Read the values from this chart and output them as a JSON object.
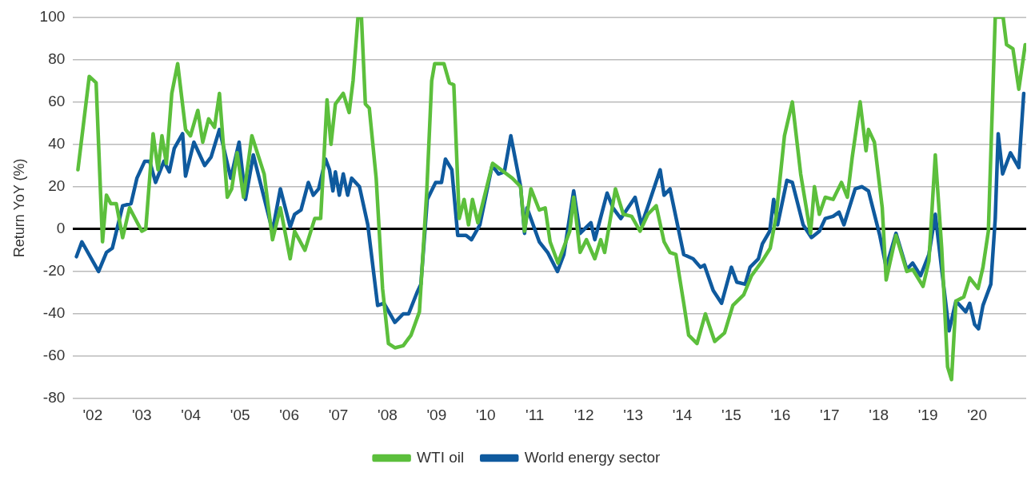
{
  "chart_data": {
    "type": "line",
    "ylabel": "Return YoY (%)",
    "legend": "bottom",
    "grid": "y",
    "marker": "none",
    "line_style": "solid",
    "xlim": [
      2001.6,
      2021.0
    ],
    "xticks": [
      {
        "value": 2002,
        "label": "'02"
      },
      {
        "value": 2003,
        "label": "'03"
      },
      {
        "value": 2004,
        "label": "'04"
      },
      {
        "value": 2005,
        "label": "'05"
      },
      {
        "value": 2006,
        "label": "'06"
      },
      {
        "value": 2007,
        "label": "'07"
      },
      {
        "value": 2008,
        "label": "'08"
      },
      {
        "value": 2009,
        "label": "'09"
      },
      {
        "value": 2010,
        "label": "'10"
      },
      {
        "value": 2011,
        "label": "'11"
      },
      {
        "value": 2012,
        "label": "'12"
      },
      {
        "value": 2013,
        "label": "'13"
      },
      {
        "value": 2014,
        "label": "'14"
      },
      {
        "value": 2015,
        "label": "'15"
      },
      {
        "value": 2016,
        "label": "'16"
      },
      {
        "value": 2017,
        "label": "'17"
      },
      {
        "value": 2018,
        "label": "'18"
      },
      {
        "value": 2019,
        "label": "'19"
      },
      {
        "value": 2020,
        "label": "'20"
      }
    ],
    "ylim": [
      -80,
      100
    ],
    "yticks": [
      -80,
      -60,
      -40,
      -20,
      0,
      20,
      40,
      60,
      80,
      100
    ],
    "series": [
      {
        "name": "WTI oil",
        "color": "#5cbf3c",
        "x": [
          2001.7,
          2001.93,
          2002.07,
          2002.2,
          2002.28,
          2002.37,
          2002.48,
          2002.61,
          2002.75,
          2003.0,
          2003.08,
          2003.23,
          2003.33,
          2003.41,
          2003.5,
          2003.61,
          2003.73,
          2003.89,
          2003.99,
          2004.14,
          2004.24,
          2004.36,
          2004.48,
          2004.58,
          2004.74,
          2004.83,
          2004.94,
          2005.07,
          2005.24,
          2005.49,
          2005.66,
          2005.82,
          2006.02,
          2006.11,
          2006.32,
          2006.52,
          2006.64,
          2006.77,
          2006.85,
          2006.94,
          2007.1,
          2007.22,
          2007.3,
          2007.4,
          2007.47,
          2007.55,
          2007.63,
          2007.77,
          2007.9,
          2008.02,
          2008.15,
          2008.32,
          2008.48,
          2008.65,
          2008.8,
          2008.9,
          2008.96,
          2009.15,
          2009.26,
          2009.35,
          2009.46,
          2009.56,
          2009.65,
          2009.73,
          2009.84,
          2010.14,
          2010.54,
          2010.71,
          2010.79,
          2010.92,
          2011.09,
          2011.21,
          2011.31,
          2011.47,
          2011.71,
          2011.79,
          2011.92,
          2012.05,
          2012.22,
          2012.34,
          2012.42,
          2012.64,
          2012.8,
          2012.97,
          2013.14,
          2013.3,
          2013.47,
          2013.63,
          2013.75,
          2013.87,
          2014.03,
          2014.13,
          2014.3,
          2014.47,
          2014.66,
          2014.86,
          2015.03,
          2015.25,
          2015.41,
          2015.63,
          2015.79,
          2015.91,
          2016.08,
          2016.24,
          2016.41,
          2016.61,
          2016.69,
          2016.79,
          2016.91,
          2017.07,
          2017.24,
          2017.36,
          2017.46,
          2017.62,
          2017.74,
          2017.79,
          2017.91,
          2018.07,
          2018.15,
          2018.35,
          2018.57,
          2018.69,
          2018.9,
          2019.02,
          2019.15,
          2019.28,
          2019.4,
          2019.48,
          2019.57,
          2019.73,
          2019.85,
          2020.02,
          2020.12,
          2020.23,
          2020.37,
          2020.53,
          2020.6,
          2020.73,
          2020.85,
          2020.98
        ],
        "values": [
          28,
          72,
          69,
          -6,
          16,
          12,
          12,
          -4,
          10,
          -1,
          0,
          45,
          28,
          44,
          31,
          64,
          78,
          47,
          44,
          56,
          41,
          52,
          48,
          64,
          15,
          19,
          36,
          15,
          44,
          26,
          -5,
          10,
          -14,
          -1,
          -10,
          5,
          5,
          61,
          40,
          59,
          64,
          55,
          70,
          100,
          100,
          59,
          57,
          24,
          -28,
          -54,
          -56,
          -55,
          -50,
          -39,
          18,
          70,
          78,
          78,
          69,
          68,
          5,
          14,
          2,
          14,
          3,
          31,
          24,
          20,
          -1,
          19,
          9,
          10,
          -6,
          -16,
          -1,
          15,
          -11,
          -5,
          -14,
          -5,
          -11,
          19,
          7,
          6,
          -1,
          7,
          11,
          -6,
          -11,
          -12,
          -35,
          -50,
          -54,
          -40,
          -53,
          -49,
          -36,
          -31,
          -22,
          -15,
          -9,
          6,
          44,
          60,
          26,
          -2,
          20,
          7,
          15,
          14,
          22,
          15,
          34,
          60,
          37,
          47,
          41,
          10,
          -24,
          -3,
          -20,
          -19,
          -27,
          -15,
          35,
          -9,
          -65,
          -71,
          -34,
          -32,
          -23,
          -28,
          -18,
          -1,
          100,
          100,
          87,
          85,
          66,
          87
        ]
      },
      {
        "name": "World energy sector",
        "color": "#0f5a9e",
        "x": [
          2001.67,
          2001.78,
          2002.12,
          2002.28,
          2002.4,
          2002.61,
          2002.78,
          2002.9,
          2003.06,
          2003.16,
          2003.28,
          2003.45,
          2003.56,
          2003.66,
          2003.83,
          2003.89,
          2004.06,
          2004.28,
          2004.41,
          2004.58,
          2004.81,
          2004.98,
          2005.11,
          2005.27,
          2005.66,
          2005.82,
          2006.02,
          2006.11,
          2006.24,
          2006.39,
          2006.49,
          2006.6,
          2006.74,
          2006.82,
          2006.89,
          2006.94,
          2007.02,
          2007.1,
          2007.19,
          2007.27,
          2007.43,
          2007.6,
          2007.8,
          2007.93,
          2008.15,
          2008.32,
          2008.43,
          2008.6,
          2008.68,
          2008.81,
          2008.98,
          2009.1,
          2009.18,
          2009.31,
          2009.43,
          2009.6,
          2009.71,
          2009.88,
          2010.13,
          2010.26,
          2010.38,
          2010.51,
          2010.71,
          2010.79,
          2010.84,
          2011.09,
          2011.26,
          2011.46,
          2011.59,
          2011.79,
          2011.92,
          2012.14,
          2012.22,
          2012.47,
          2012.59,
          2012.75,
          2013.04,
          2013.17,
          2013.29,
          2013.55,
          2013.63,
          2013.75,
          2014.03,
          2014.22,
          2014.37,
          2014.45,
          2014.63,
          2014.8,
          2015.0,
          2015.11,
          2015.28,
          2015.38,
          2015.55,
          2015.63,
          2015.78,
          2015.86,
          2015.94,
          2016.13,
          2016.24,
          2016.46,
          2016.63,
          2016.79,
          2016.91,
          2017.07,
          2017.19,
          2017.29,
          2017.52,
          2017.66,
          2017.79,
          2018.02,
          2018.15,
          2018.35,
          2018.57,
          2018.69,
          2018.85,
          2019.02,
          2019.15,
          2019.28,
          2019.43,
          2019.57,
          2019.77,
          2019.85,
          2019.95,
          2020.03,
          2020.12,
          2020.28,
          2020.37,
          2020.43,
          2020.52,
          2020.68,
          2020.85,
          2020.95
        ],
        "values": [
          -13,
          -6,
          -20,
          -11,
          -9,
          11,
          12,
          24,
          32,
          32,
          22,
          32,
          27,
          38,
          45,
          25,
          41,
          30,
          34,
          47,
          24,
          41,
          14,
          35,
          -1,
          19,
          1,
          7,
          9,
          22,
          16,
          19,
          33,
          28,
          18,
          27,
          16,
          26,
          16,
          24,
          20,
          2,
          -36,
          -35,
          -44,
          -40,
          -40,
          -30,
          -26,
          14,
          22,
          22,
          33,
          28,
          -3,
          -3,
          -5,
          2,
          30,
          26,
          27,
          44,
          20,
          -2,
          10,
          -6,
          -11,
          -20,
          -12,
          18,
          -2,
          3,
          -5,
          17,
          10,
          5,
          15,
          2,
          10,
          28,
          16,
          19,
          -12,
          -14,
          -18,
          -17,
          -29,
          -35,
          -18,
          -25,
          -26,
          -18,
          -14,
          -7,
          -1,
          14,
          2,
          23,
          22,
          2,
          -4,
          -1,
          5,
          6,
          8,
          2,
          19,
          20,
          18,
          -3,
          -18,
          -2,
          -19,
          -16,
          -22,
          -12,
          7,
          -19,
          -48,
          -34,
          -39,
          -35,
          -45,
          -47,
          -36,
          -26,
          5,
          45,
          26,
          36,
          29,
          64
        ]
      }
    ]
  }
}
